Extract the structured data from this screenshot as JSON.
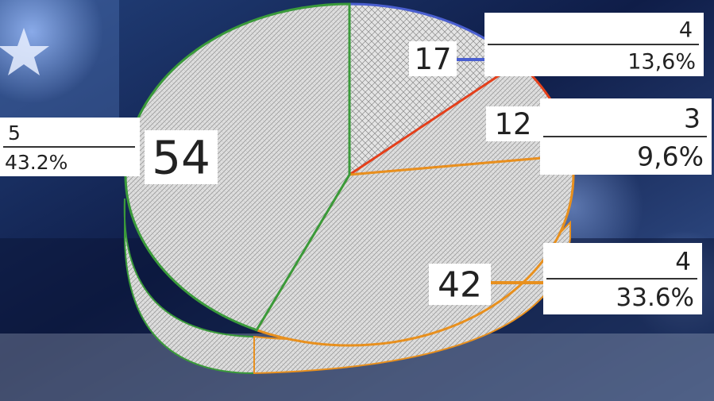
{
  "chart_data": {
    "type": "pie",
    "title": "",
    "slices": [
      {
        "category": "4",
        "count": "17",
        "percent": "13,6%",
        "value": 17,
        "color": "#4a5fd0"
      },
      {
        "category": "3",
        "count": "12",
        "percent": "9,6%",
        "value": 12,
        "color": "#e5401a"
      },
      {
        "category": "4",
        "count": "42",
        "percent": "33.6%",
        "value": 42,
        "color": "#e8901e"
      },
      {
        "category": "5",
        "count": "54",
        "percent": "43.2%",
        "value": 54,
        "color": "#3a9a3a"
      }
    ]
  },
  "colors": {
    "background_dark": "#0d1a40",
    "background_light": "#3c6ab0",
    "slice_fill": "#dcdcdc"
  }
}
